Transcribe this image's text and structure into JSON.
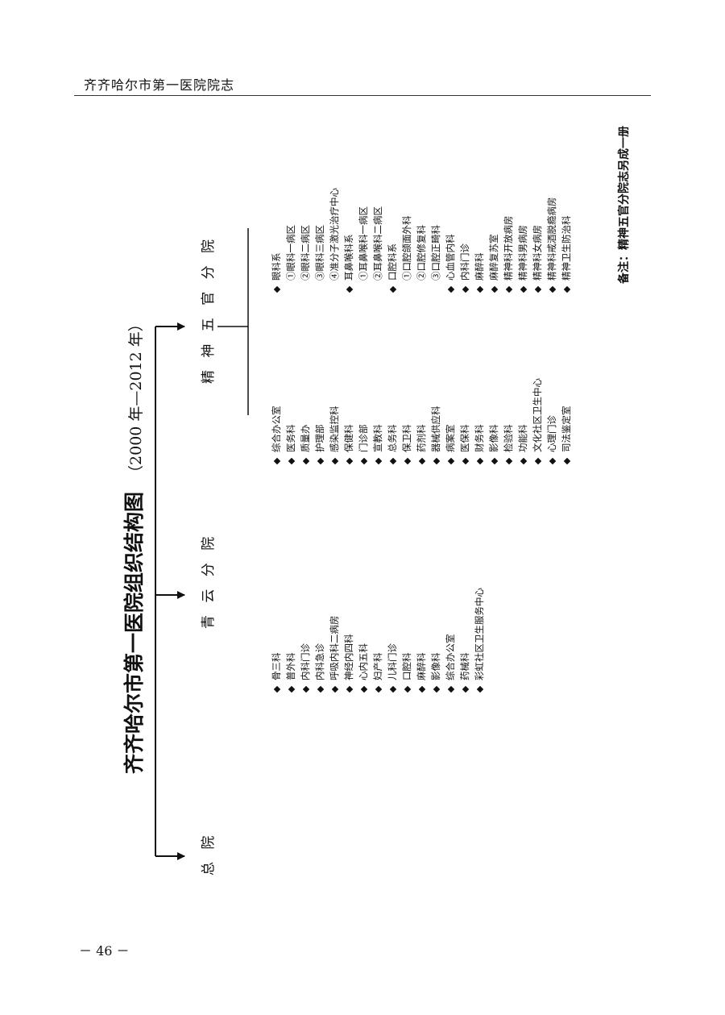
{
  "header": {
    "title": "齐齐哈尔市第一医院院志"
  },
  "page_number": "－ 46 －",
  "chart": {
    "title": "齐齐哈尔市第一医院组织结构图",
    "years": "（2000 年—2012 年）",
    "branches": [
      {
        "name": "总 院",
        "items": []
      },
      {
        "name": "青 云 分 院",
        "items": [
          {
            "text": "骨三科",
            "bullet": true
          },
          {
            "text": "普外科",
            "bullet": true
          },
          {
            "text": "内科门诊",
            "bullet": true
          },
          {
            "text": "内科急诊",
            "bullet": true
          },
          {
            "text": "呼吸内科二病房",
            "bullet": true
          },
          {
            "text": "神经内四科",
            "bullet": true
          },
          {
            "text": "心内五科",
            "bullet": true
          },
          {
            "text": "妇产科",
            "bullet": true
          },
          {
            "text": "儿科门诊",
            "bullet": true
          },
          {
            "text": "口腔科",
            "bullet": true
          },
          {
            "text": "麻醉科",
            "bullet": true
          },
          {
            "text": "影像科",
            "bullet": true
          },
          {
            "text": "综合办公室",
            "bullet": true
          },
          {
            "text": "药械科",
            "bullet": true
          },
          {
            "text": "彩虹社区卫生服务中心",
            "bullet": true
          }
        ]
      },
      {
        "name": "精 神 五 官 分 院",
        "items_left": [
          {
            "text": "综合办公室",
            "bullet": true
          },
          {
            "text": "医务科",
            "bullet": true
          },
          {
            "text": "质量办",
            "bullet": true
          },
          {
            "text": "护理部",
            "bullet": true
          },
          {
            "text": "感染监控科",
            "bullet": true
          },
          {
            "text": "保健科",
            "bullet": true
          },
          {
            "text": "门诊部",
            "bullet": true
          },
          {
            "text": "宣教科",
            "bullet": true
          },
          {
            "text": "总务科",
            "bullet": true
          },
          {
            "text": "保卫科",
            "bullet": true
          },
          {
            "text": "药剂科",
            "bullet": true
          },
          {
            "text": "器械供应科",
            "bullet": true
          },
          {
            "text": "病案室",
            "bullet": true
          },
          {
            "text": "医保科",
            "bullet": true
          },
          {
            "text": "财务科",
            "bullet": true
          },
          {
            "text": "影像科",
            "bullet": true
          },
          {
            "text": "检验科",
            "bullet": true
          },
          {
            "text": "功能科",
            "bullet": true
          },
          {
            "text": "文化社区卫生中心",
            "bullet": true
          },
          {
            "text": "心理门诊",
            "bullet": true
          },
          {
            "text": "司法鉴定室",
            "bullet": true
          }
        ],
        "items_right": [
          {
            "text": "眼科系",
            "bullet": true
          },
          {
            "text": "①眼科一病区",
            "bullet": false
          },
          {
            "text": "②眼科二病区",
            "bullet": false
          },
          {
            "text": "③眼科三病区",
            "bullet": false
          },
          {
            "text": "④准分子激光治疗中心",
            "bullet": false
          },
          {
            "text": "耳鼻喉科系",
            "bullet": true
          },
          {
            "text": "①耳鼻喉科一病区",
            "bullet": false
          },
          {
            "text": "②耳鼻喉科二病区",
            "bullet": false
          },
          {
            "text": "口腔科系",
            "bullet": true
          },
          {
            "text": "①口腔颌面外科",
            "bullet": false
          },
          {
            "text": "②口腔修复科",
            "bullet": false
          },
          {
            "text": "③口腔正畸科",
            "bullet": false
          },
          {
            "text": "心血管内科",
            "bullet": true
          },
          {
            "text": "内科门诊",
            "bullet": true
          },
          {
            "text": "麻醉科",
            "bullet": true
          },
          {
            "text": "麻醉复苏室",
            "bullet": true
          },
          {
            "text": "精神科开放病房",
            "bullet": true
          },
          {
            "text": "精神科男病房",
            "bullet": true
          },
          {
            "text": "精神科女病房",
            "bullet": true
          },
          {
            "text": "精神科戒酒脱瘾病房",
            "bullet": true
          },
          {
            "text": "精神卫生防治科",
            "bullet": true
          }
        ]
      }
    ]
  },
  "note": "备注：精神五官分院志另成一册"
}
